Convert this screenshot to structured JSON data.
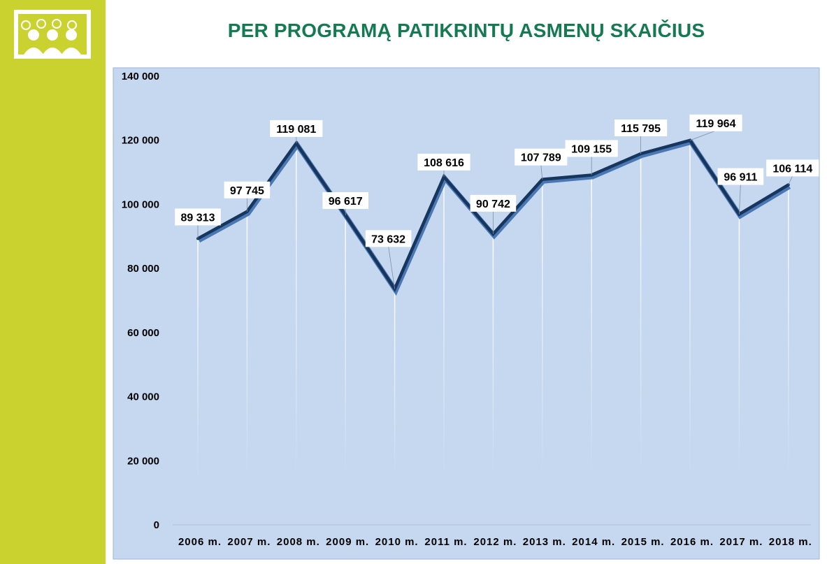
{
  "title": "PER PROGRAMĄ PATIKRINTŲ ASMENŲ SKAIČIUS",
  "logo": {
    "name": "people-group-logo"
  },
  "colors": {
    "sidebar": "#c9d22f",
    "title": "#157a52",
    "plot_background": "#c5d8f0",
    "line": "#17365d",
    "label_box": "#ffffff"
  },
  "chart_data": {
    "type": "line",
    "title": "PER PROGRAMĄ PATIKRINTŲ ASMENŲ SKAIČIUS",
    "xlabel": "",
    "ylabel": "",
    "categories": [
      "2006 m.",
      "2007 m.",
      "2008 m.",
      "2009 m.",
      "2010 m.",
      "2011 m.",
      "2012 m.",
      "2013 m.",
      "2014 m.",
      "2015 m.",
      "2016 m.",
      "2017 m.",
      "2018 m."
    ],
    "series": [
      {
        "values": [
          89313,
          97745,
          119081,
          96617,
          73632,
          108616,
          90742,
          107789,
          109155,
          115795,
          119964,
          96911,
          106114
        ],
        "labels": [
          "89 313",
          "97 745",
          "119 081",
          "96 617",
          "73 632",
          "108 616",
          "90 742",
          "107 789",
          "109 155",
          "115 795",
          "119 964",
          "96 911",
          "106 114"
        ]
      }
    ],
    "ylim": [
      0,
      140000
    ],
    "yticks": [
      0,
      20000,
      40000,
      60000,
      80000,
      100000,
      120000,
      140000
    ],
    "ytick_labels": [
      "0",
      "20 000",
      "40 000",
      "60 000",
      "80 000",
      "100 000",
      "120 000",
      "140 000"
    ],
    "grid": false,
    "drop_lines": true,
    "legend": "none"
  }
}
